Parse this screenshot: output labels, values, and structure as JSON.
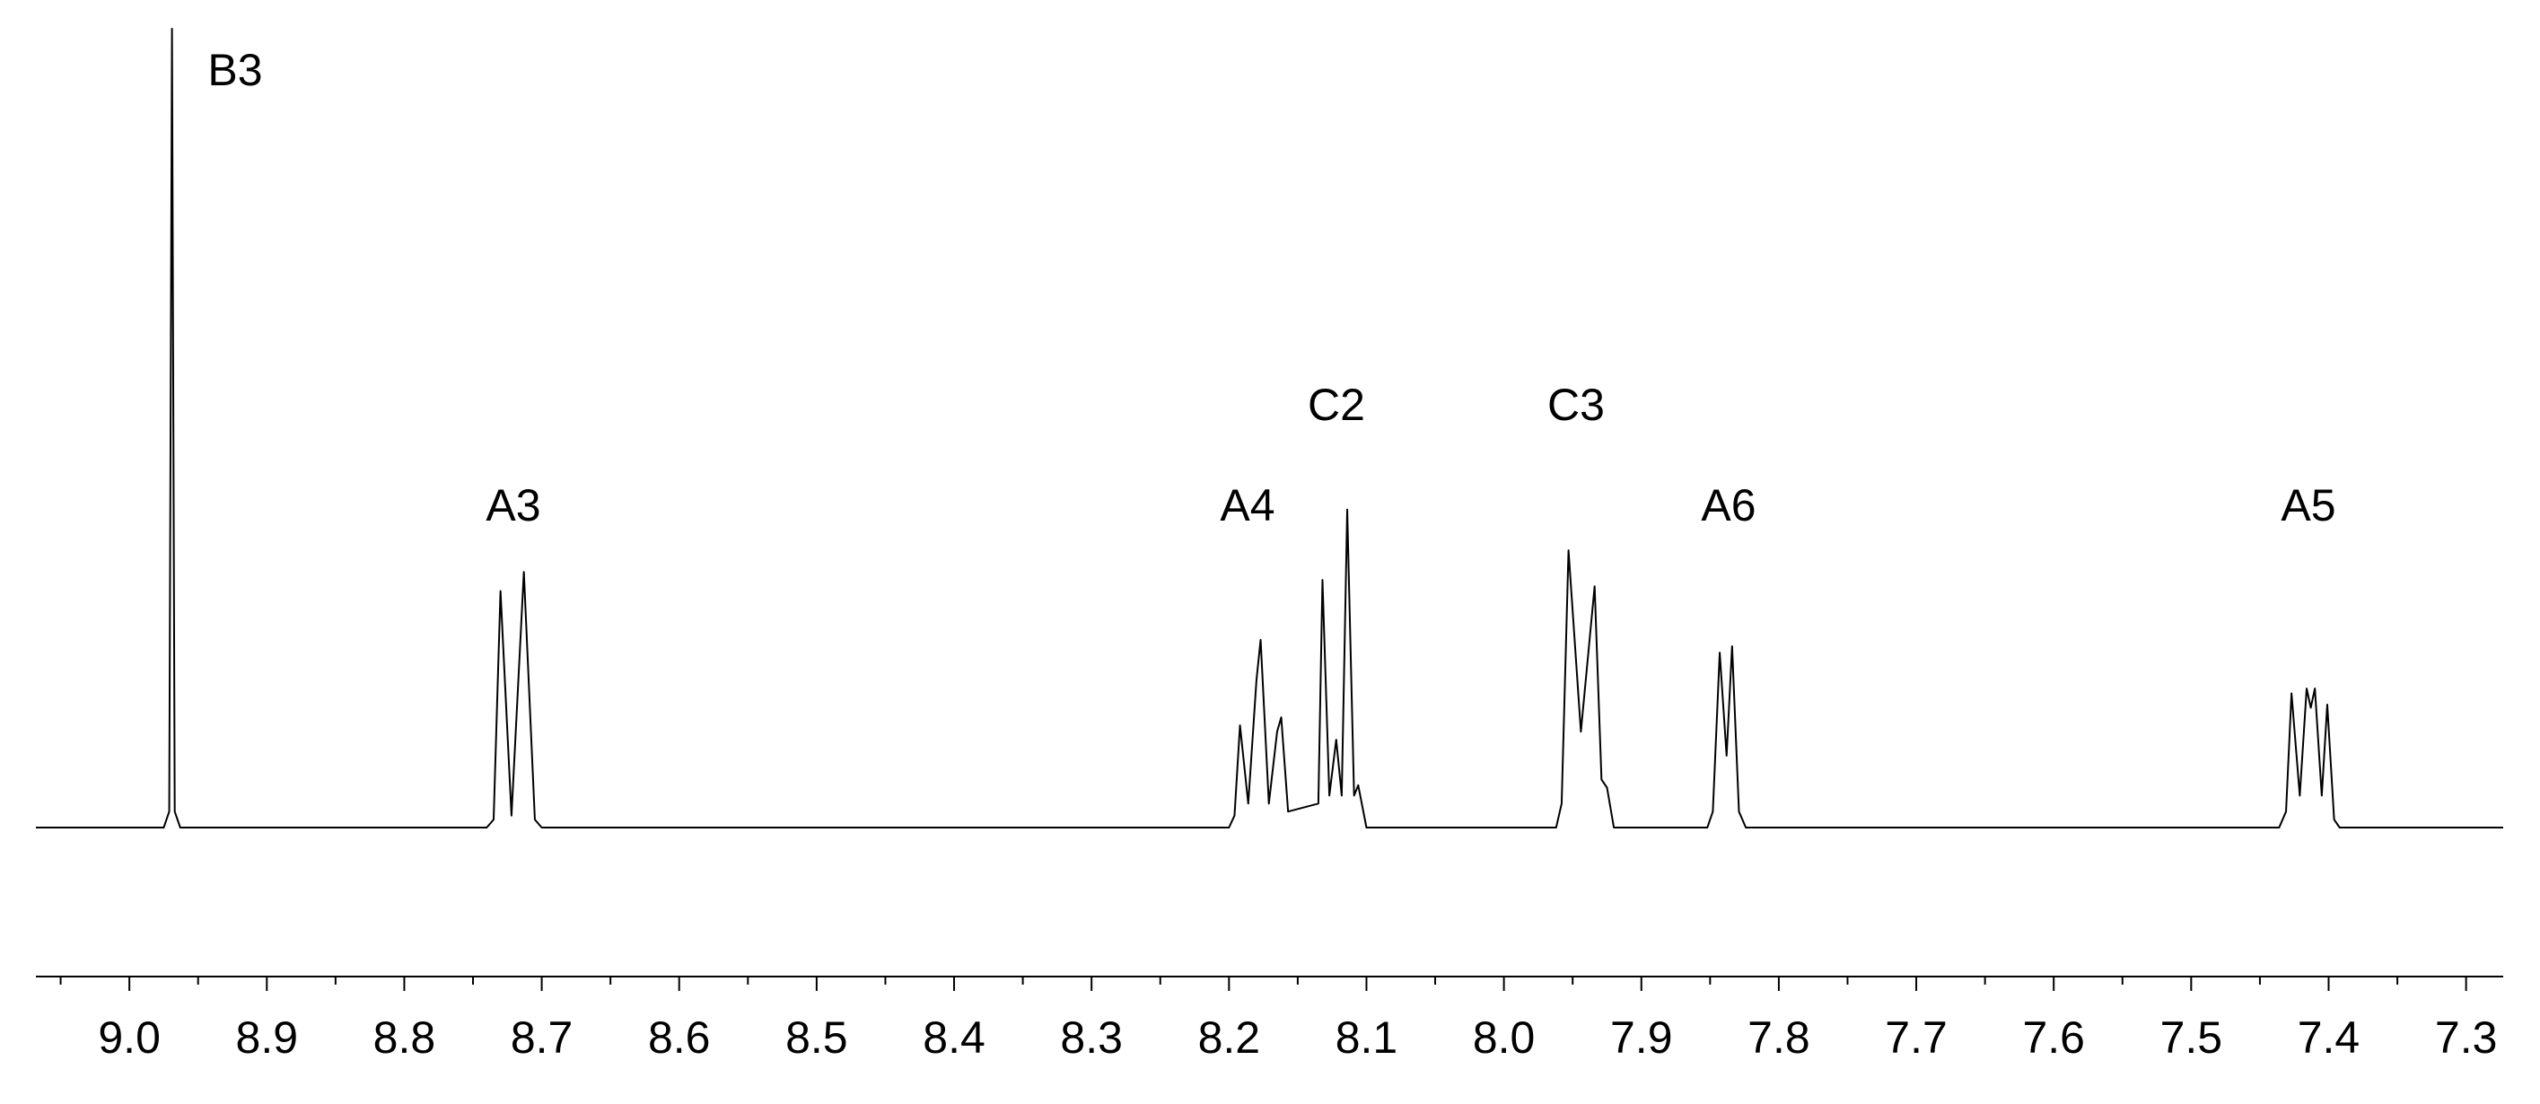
{
  "chart_data": {
    "type": "line",
    "x": [
      9.068,
      8.975,
      8.971,
      8.969,
      8.967,
      8.963,
      8.74,
      8.735,
      8.73,
      8.722,
      8.713,
      8.705,
      8.7,
      8.2,
      8.196,
      8.192,
      8.186,
      8.18,
      8.177,
      8.171,
      8.165,
      8.162,
      8.157,
      8.135,
      8.132,
      8.127,
      8.122,
      8.118,
      8.114,
      8.109,
      8.106,
      8.1,
      7.962,
      7.958,
      7.953,
      7.944,
      7.934,
      7.929,
      7.925,
      7.92,
      7.852,
      7.848,
      7.843,
      7.838,
      7.834,
      7.829,
      7.824,
      7.436,
      7.431,
      7.427,
      7.421,
      7.416,
      7.413,
      7.41,
      7.405,
      7.401,
      7.396,
      7.392,
      7.273
    ],
    "values": [
      0,
      0,
      2,
      100,
      2,
      0,
      0,
      1,
      29.6,
      1.5,
      32,
      1,
      0,
      0,
      1.5,
      12.8,
      3,
      18.5,
      23.5,
      3,
      12,
      13.8,
      2,
      3,
      31,
      4,
      11,
      4,
      39.8,
      4,
      5.3,
      0,
      0,
      3,
      34.7,
      12,
      30.2,
      6,
      5,
      0,
      0,
      2,
      21.9,
      9,
      22.7,
      2,
      0,
      0,
      2,
      16.8,
      4,
      17.4,
      15,
      17.4,
      4,
      15.4,
      1,
      0,
      0
    ],
    "color": "#000000",
    "annotations": [
      "B3",
      "A3",
      "A4",
      "C2",
      "C3",
      "A6",
      "A5"
    ],
    "xlim": [
      9.068,
      7.273
    ],
    "ylim": [
      0,
      100
    ],
    "xticks": [
      {
        "value": 9,
        "label": "9.0"
      },
      8.9,
      8.8,
      8.7,
      8.6,
      8.5,
      8.4,
      8.3,
      8.2,
      8.1,
      {
        "value": 8,
        "label": "8.0"
      },
      7.9,
      7.8,
      7.7,
      7.6,
      7.5,
      7.4,
      7.3
    ],
    "xminor_ticks": [
      9.05,
      8.95,
      8.85,
      8.75,
      8.65,
      8.55,
      8.45,
      8.35,
      8.25,
      8.15,
      8.05,
      7.95,
      7.85,
      7.75,
      7.65,
      7.55,
      7.45,
      7.35
    ]
  }
}
